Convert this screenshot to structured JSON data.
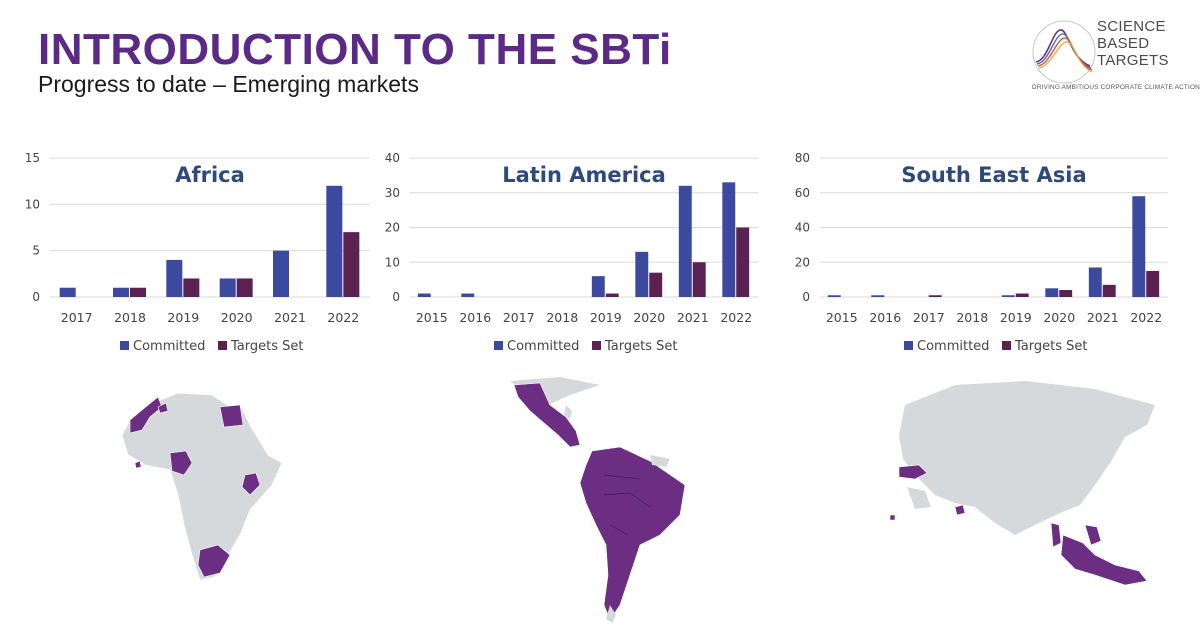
{
  "header": {
    "title": "INTRODUCTION TO THE SBTi",
    "subtitle": "Progress to date – Emerging markets"
  },
  "logo": {
    "line1": "SCIENCE",
    "line2": "BASED",
    "line3": "TARGETS",
    "tagline": "DRIVING AMBITIOUS CORPORATE CLIMATE ACTION"
  },
  "colors": {
    "committed": "#3b4a9e",
    "targets_set": "#5b2150",
    "title": "#5b2a86",
    "chart_title": "#2e4a7a",
    "map_highlight": "#6b2e83",
    "map_base": "#d6d9db"
  },
  "chart_data": [
    {
      "type": "bar",
      "title": "Africa",
      "categories": [
        "2017",
        "2018",
        "2019",
        "2020",
        "2021",
        "2022"
      ],
      "ylim": [
        0,
        15
      ],
      "yticks": [
        0,
        5,
        10,
        15
      ],
      "legend": "bottom",
      "grid": true,
      "series": [
        {
          "name": "Committed",
          "values": [
            1,
            1,
            4,
            2,
            5,
            12
          ]
        },
        {
          "name": "Targets Set",
          "values": [
            0,
            1,
            2,
            2,
            0,
            7
          ]
        }
      ]
    },
    {
      "type": "bar",
      "title": "Latin America",
      "categories": [
        "2015",
        "2016",
        "2017",
        "2018",
        "2019",
        "2020",
        "2021",
        "2022"
      ],
      "ylim": [
        0,
        40
      ],
      "yticks": [
        0,
        10,
        20,
        30,
        40
      ],
      "legend": "bottom",
      "grid": true,
      "series": [
        {
          "name": "Committed",
          "values": [
            1,
            1,
            0,
            0,
            6,
            13,
            32,
            33
          ]
        },
        {
          "name": "Targets Set",
          "values": [
            0,
            0,
            0,
            0,
            1,
            7,
            10,
            20
          ]
        }
      ]
    },
    {
      "type": "bar",
      "title": "South East Asia",
      "categories": [
        "2015",
        "2016",
        "2017",
        "2018",
        "2019",
        "2020",
        "2021",
        "2022"
      ],
      "ylim": [
        0,
        80
      ],
      "yticks": [
        0,
        20,
        40,
        60,
        80
      ],
      "legend": "bottom",
      "grid": true,
      "series": [
        {
          "name": "Committed",
          "values": [
            1,
            1,
            0,
            0,
            1,
            5,
            17,
            58
          ]
        },
        {
          "name": "Targets Set",
          "values": [
            0,
            0,
            1,
            0,
            2,
            4,
            7,
            15
          ]
        }
      ]
    }
  ]
}
